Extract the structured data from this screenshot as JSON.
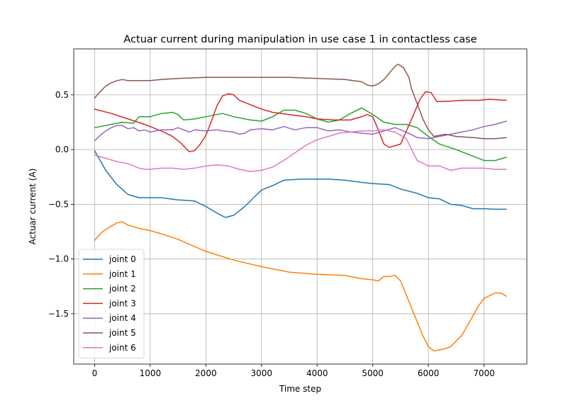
{
  "chart_data": {
    "type": "line",
    "title": "Actuar current during manipulation in use case 1 in contactless case",
    "xlabel": "Time step",
    "ylabel": "Actuar current (A)",
    "xlim": [
      -375,
      7770
    ],
    "ylim": [
      -1.96,
      0.92
    ],
    "xticks": [
      0,
      1000,
      2000,
      3000,
      4000,
      5000,
      6000,
      7000
    ],
    "xtick_labels": [
      "0",
      "1000",
      "2000",
      "3000",
      "4000",
      "5000",
      "6000",
      "7000"
    ],
    "yticks": [
      -1.5,
      -1.0,
      -0.5,
      0.0,
      0.5
    ],
    "ytick_labels": [
      "−1.5",
      "−1.0",
      "−0.5",
      "0.0",
      "0.5"
    ],
    "grid": true,
    "legend_position": "lower-left",
    "series": [
      {
        "name": "joint 0",
        "color": "#1f77b4",
        "x": [
          0,
          100,
          200,
          400,
          600,
          800,
          1000,
          1200,
          1500,
          1800,
          2000,
          2200,
          2350,
          2500,
          2700,
          2900,
          3000,
          3200,
          3400,
          3700,
          4000,
          4200,
          4500,
          4800,
          5000,
          5300,
          5500,
          5800,
          6000,
          6200,
          6400,
          6600,
          6800,
          7000,
          7200,
          7400
        ],
        "y": [
          -0.01,
          -0.1,
          -0.19,
          -0.32,
          -0.41,
          -0.44,
          -0.44,
          -0.44,
          -0.46,
          -0.47,
          -0.52,
          -0.58,
          -0.62,
          -0.6,
          -0.52,
          -0.42,
          -0.37,
          -0.33,
          -0.28,
          -0.27,
          -0.27,
          -0.27,
          -0.28,
          -0.3,
          -0.31,
          -0.32,
          -0.36,
          -0.4,
          -0.44,
          -0.45,
          -0.5,
          -0.51,
          -0.54,
          -0.54,
          -0.545,
          -0.545
        ]
      },
      {
        "name": "joint 1",
        "color": "#ff7f0e",
        "x": [
          0,
          100,
          200,
          300,
          400,
          500,
          600,
          800,
          1000,
          1200,
          1500,
          2000,
          2500,
          3000,
          3500,
          4000,
          4500,
          4800,
          5000,
          5100,
          5200,
          5300,
          5400,
          5500,
          5700,
          5900,
          6000,
          6100,
          6200,
          6300,
          6400,
          6600,
          6800,
          6900,
          7000,
          7200,
          7300,
          7400
        ],
        "y": [
          -0.83,
          -0.77,
          -0.73,
          -0.7,
          -0.67,
          -0.66,
          -0.69,
          -0.72,
          -0.74,
          -0.77,
          -0.82,
          -0.93,
          -1.01,
          -1.07,
          -1.12,
          -1.14,
          -1.15,
          -1.18,
          -1.19,
          -1.2,
          -1.16,
          -1.16,
          -1.15,
          -1.2,
          -1.45,
          -1.7,
          -1.8,
          -1.84,
          -1.83,
          -1.82,
          -1.8,
          -1.7,
          -1.52,
          -1.43,
          -1.36,
          -1.31,
          -1.31,
          -1.34
        ]
      },
      {
        "name": "joint 2",
        "color": "#2ca02c",
        "x": [
          0,
          300,
          500,
          700,
          800,
          1000,
          1200,
          1400,
          1500,
          1600,
          1800,
          2000,
          2200,
          2300,
          2500,
          2800,
          3000,
          3200,
          3400,
          3600,
          3800,
          4000,
          4200,
          4400,
          4600,
          4800,
          5000,
          5200,
          5400,
          5600,
          5800,
          6000,
          6200,
          6500,
          6800,
          7000,
          7200,
          7400
        ],
        "y": [
          0.2,
          0.23,
          0.25,
          0.24,
          0.3,
          0.3,
          0.33,
          0.34,
          0.32,
          0.27,
          0.28,
          0.3,
          0.32,
          0.33,
          0.3,
          0.27,
          0.26,
          0.3,
          0.36,
          0.36,
          0.33,
          0.28,
          0.25,
          0.27,
          0.33,
          0.38,
          0.32,
          0.25,
          0.23,
          0.23,
          0.2,
          0.12,
          0.05,
          0.0,
          -0.06,
          -0.1,
          -0.1,
          -0.07
        ]
      },
      {
        "name": "joint 3",
        "color": "#d62728",
        "x": [
          0,
          300,
          600,
          900,
          1200,
          1400,
          1550,
          1700,
          1800,
          1900,
          2000,
          2100,
          2200,
          2300,
          2400,
          2500,
          2600,
          2800,
          3000,
          3200,
          3500,
          3800,
          4000,
          4300,
          4600,
          4800,
          4900,
          5000,
          5100,
          5200,
          5300,
          5500,
          5700,
          5850,
          5950,
          6050,
          6100,
          6150,
          6300,
          6600,
          6900,
          7100,
          7400
        ],
        "y": [
          0.37,
          0.33,
          0.28,
          0.23,
          0.17,
          0.12,
          0.06,
          -0.02,
          -0.01,
          0.05,
          0.13,
          0.26,
          0.4,
          0.49,
          0.51,
          0.5,
          0.45,
          0.41,
          0.37,
          0.34,
          0.32,
          0.3,
          0.28,
          0.27,
          0.27,
          0.3,
          0.32,
          0.3,
          0.18,
          0.05,
          0.02,
          0.05,
          0.28,
          0.46,
          0.53,
          0.52,
          0.48,
          0.44,
          0.44,
          0.45,
          0.45,
          0.46,
          0.45
        ]
      },
      {
        "name": "joint 4",
        "color": "#9467bd",
        "x": [
          0,
          100,
          200,
          300,
          400,
          500,
          600,
          700,
          800,
          900,
          1000,
          1200,
          1400,
          1500,
          1700,
          1800,
          2000,
          2200,
          2300,
          2500,
          2600,
          2700,
          2800,
          3000,
          3200,
          3400,
          3600,
          3800,
          4000,
          4200,
          4400,
          4600,
          4800,
          5000,
          5200,
          5400,
          5600,
          5800,
          6000,
          6200,
          6400,
          6600,
          6800,
          7000,
          7200,
          7400
        ],
        "y": [
          0.08,
          0.13,
          0.17,
          0.2,
          0.22,
          0.22,
          0.19,
          0.2,
          0.17,
          0.18,
          0.16,
          0.18,
          0.18,
          0.2,
          0.16,
          0.18,
          0.17,
          0.18,
          0.17,
          0.16,
          0.14,
          0.15,
          0.18,
          0.19,
          0.18,
          0.21,
          0.18,
          0.2,
          0.2,
          0.17,
          0.18,
          0.16,
          0.15,
          0.14,
          0.17,
          0.2,
          0.16,
          0.11,
          0.1,
          0.12,
          0.14,
          0.16,
          0.18,
          0.21,
          0.23,
          0.26
        ]
      },
      {
        "name": "joint 5",
        "color": "#8c564b",
        "x": [
          0,
          100,
          200,
          300,
          400,
          500,
          600,
          800,
          1000,
          1200,
          1500,
          2000,
          2500,
          3000,
          3500,
          4000,
          4500,
          4800,
          4900,
          5000,
          5100,
          5200,
          5300,
          5400,
          5450,
          5550,
          5650,
          5700,
          5800,
          5900,
          6000,
          6100,
          6200,
          6300,
          6500,
          6800,
          7000,
          7200,
          7400
        ],
        "y": [
          0.47,
          0.53,
          0.58,
          0.61,
          0.63,
          0.64,
          0.63,
          0.63,
          0.63,
          0.64,
          0.65,
          0.66,
          0.66,
          0.66,
          0.66,
          0.65,
          0.64,
          0.62,
          0.59,
          0.58,
          0.6,
          0.64,
          0.7,
          0.76,
          0.78,
          0.75,
          0.66,
          0.55,
          0.42,
          0.28,
          0.18,
          0.12,
          0.13,
          0.14,
          0.12,
          0.11,
          0.1,
          0.1,
          0.11
        ]
      },
      {
        "name": "joint 6",
        "color": "#e377c2",
        "x": [
          0,
          200,
          400,
          600,
          800,
          900,
          1000,
          1200,
          1400,
          1600,
          1800,
          2000,
          2200,
          2400,
          2600,
          2800,
          3000,
          3200,
          3400,
          3600,
          3800,
          4000,
          4200,
          4400,
          4600,
          4800,
          5000,
          5200,
          5400,
          5600,
          5800,
          6000,
          6200,
          6400,
          6600,
          6800,
          7000,
          7200,
          7400
        ],
        "y": [
          -0.05,
          -0.08,
          -0.11,
          -0.13,
          -0.17,
          -0.18,
          -0.18,
          -0.17,
          -0.17,
          -0.18,
          -0.17,
          -0.15,
          -0.14,
          -0.15,
          -0.18,
          -0.2,
          -0.19,
          -0.16,
          -0.1,
          -0.03,
          0.04,
          0.09,
          0.12,
          0.15,
          0.16,
          0.17,
          0.17,
          0.18,
          0.16,
          0.1,
          -0.1,
          -0.15,
          -0.15,
          -0.19,
          -0.17,
          -0.17,
          -0.17,
          -0.18,
          -0.18
        ]
      }
    ]
  }
}
